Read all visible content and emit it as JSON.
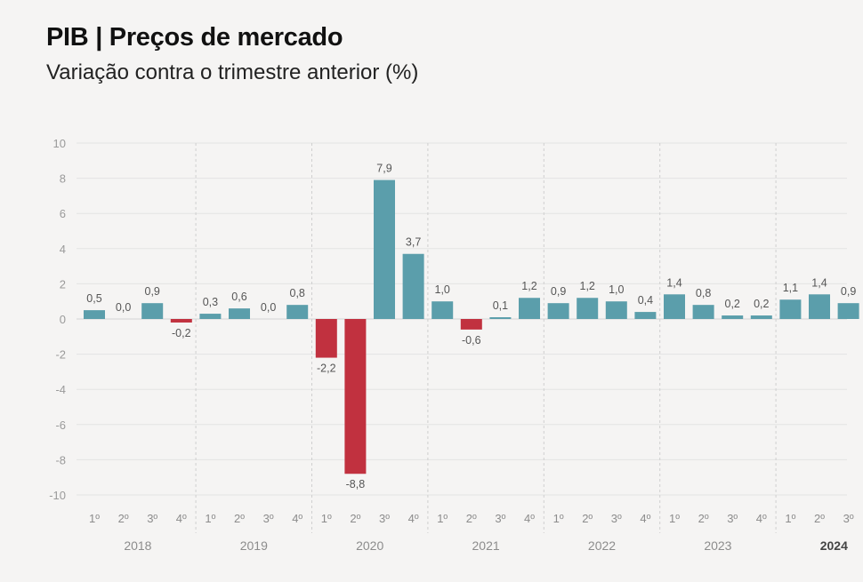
{
  "header": {
    "title": "PIB | Preços de mercado",
    "subtitle": "Variação contra o trimestre anterior (%)"
  },
  "chart_data": {
    "type": "bar",
    "title": "PIB | Preços de mercado",
    "subtitle": "Variação contra o trimestre anterior (%)",
    "xlabel": "",
    "ylabel": "",
    "ylim": [
      -10,
      10
    ],
    "yticks": [
      10,
      8,
      6,
      4,
      2,
      0,
      -2,
      -4,
      -6,
      -8,
      -10
    ],
    "grid": true,
    "positive_color": "#5b9eab",
    "negative_color": "#c1313f",
    "years": [
      {
        "label": "2018",
        "bold": false,
        "quarters": [
          "1º",
          "2º",
          "3º",
          "4º"
        ],
        "values": [
          0.5,
          0.0,
          0.9,
          -0.2
        ],
        "value_labels": [
          "0,5",
          "0,0",
          "0,9",
          "-0,2"
        ]
      },
      {
        "label": "2019",
        "bold": false,
        "quarters": [
          "1º",
          "2º",
          "3º",
          "4º"
        ],
        "values": [
          0.3,
          0.6,
          0.0,
          0.8
        ],
        "value_labels": [
          "0,3",
          "0,6",
          "0,0",
          "0,8"
        ]
      },
      {
        "label": "2020",
        "bold": false,
        "quarters": [
          "1º",
          "2º",
          "3º",
          "4º"
        ],
        "values": [
          -2.2,
          -8.8,
          7.9,
          3.7
        ],
        "value_labels": [
          "-2,2",
          "-8,8",
          "7,9",
          "3,7"
        ]
      },
      {
        "label": "2021",
        "bold": false,
        "quarters": [
          "1º",
          "2º",
          "3º",
          "4º"
        ],
        "values": [
          1.0,
          -0.6,
          0.1,
          1.2
        ],
        "value_labels": [
          "1,0",
          "-0,6",
          "0,1",
          "1,2"
        ]
      },
      {
        "label": "2022",
        "bold": false,
        "quarters": [
          "1º",
          "2º",
          "3º",
          "4º"
        ],
        "values": [
          0.9,
          1.2,
          1.0,
          0.4
        ],
        "value_labels": [
          "0,9",
          "1,2",
          "1,0",
          "0,4"
        ]
      },
      {
        "label": "2023",
        "bold": false,
        "quarters": [
          "1º",
          "2º",
          "3º",
          "4º"
        ],
        "values": [
          1.4,
          0.8,
          0.2,
          0.2
        ],
        "value_labels": [
          "1,4",
          "0,8",
          "0,2",
          "0,2"
        ]
      },
      {
        "label": "2024",
        "bold": true,
        "quarters": [
          "1º",
          "2º",
          "3º"
        ],
        "values": [
          1.1,
          1.4,
          0.9
        ],
        "value_labels": [
          "1,1",
          "1,4",
          "0,9"
        ]
      }
    ]
  }
}
